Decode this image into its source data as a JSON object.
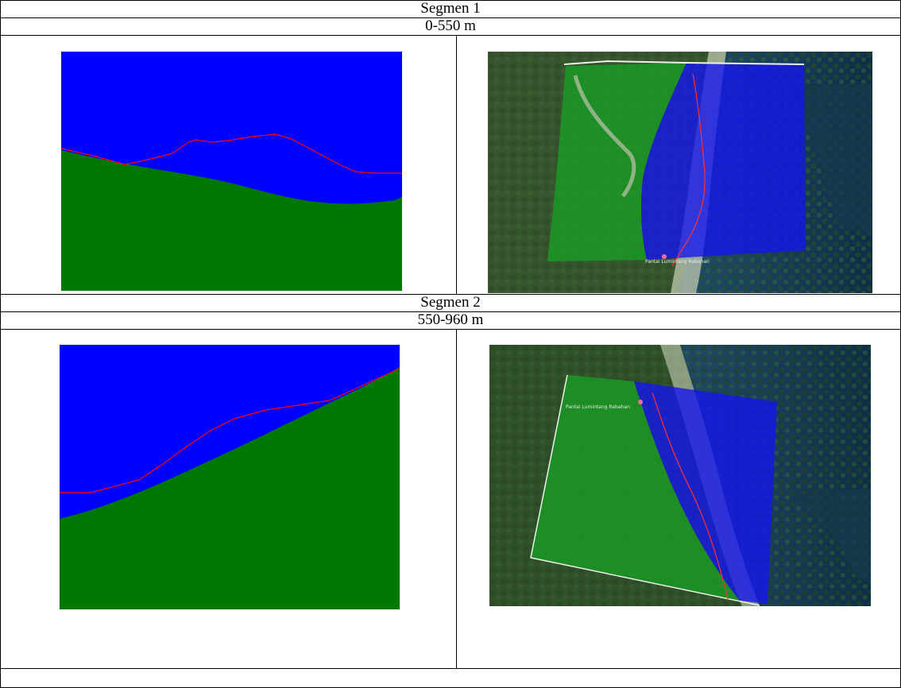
{
  "table": {
    "segments": [
      {
        "title": "Segmen 1",
        "range": "0-550 m"
      },
      {
        "title": "Segmen 2",
        "range": "550-960 m"
      }
    ]
  },
  "satellite": {
    "place_label": "Pantai Lumintang Rabahan"
  },
  "colors": {
    "water": "#0000ff",
    "land": "#007800",
    "profile_line": "#ff0000",
    "map_land_overlay": "#1a9c24",
    "map_water_overlay": "#1414f0"
  }
}
